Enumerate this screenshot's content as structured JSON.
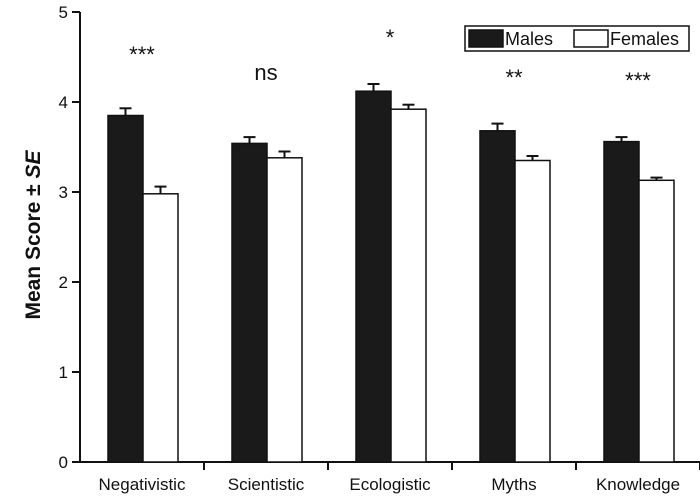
{
  "chart_data": {
    "type": "bar",
    "categories": [
      "Negativistic",
      "Scientistic",
      "Ecologistic",
      "Myths",
      "Knowledge"
    ],
    "series": [
      {
        "name": "Males",
        "values": [
          3.85,
          3.54,
          4.12,
          3.68,
          3.56
        ],
        "errors": [
          0.08,
          0.07,
          0.08,
          0.08,
          0.05
        ],
        "color": "#1a1a1a"
      },
      {
        "name": "Females",
        "values": [
          2.98,
          3.38,
          3.92,
          3.35,
          3.13
        ],
        "errors": [
          0.08,
          0.07,
          0.05,
          0.05,
          0.03
        ],
        "color": "#ffffff"
      }
    ],
    "significance": [
      "***",
      "ns",
      "*",
      "**",
      "***"
    ],
    "ylabel_main": "Mean Score ± ",
    "ylabel_italic": "SE",
    "ylim": [
      0,
      5
    ],
    "yticks": [
      "0",
      "1",
      "2",
      "3",
      "4",
      "5"
    ],
    "legend_position": "top-right",
    "grid": false
  }
}
